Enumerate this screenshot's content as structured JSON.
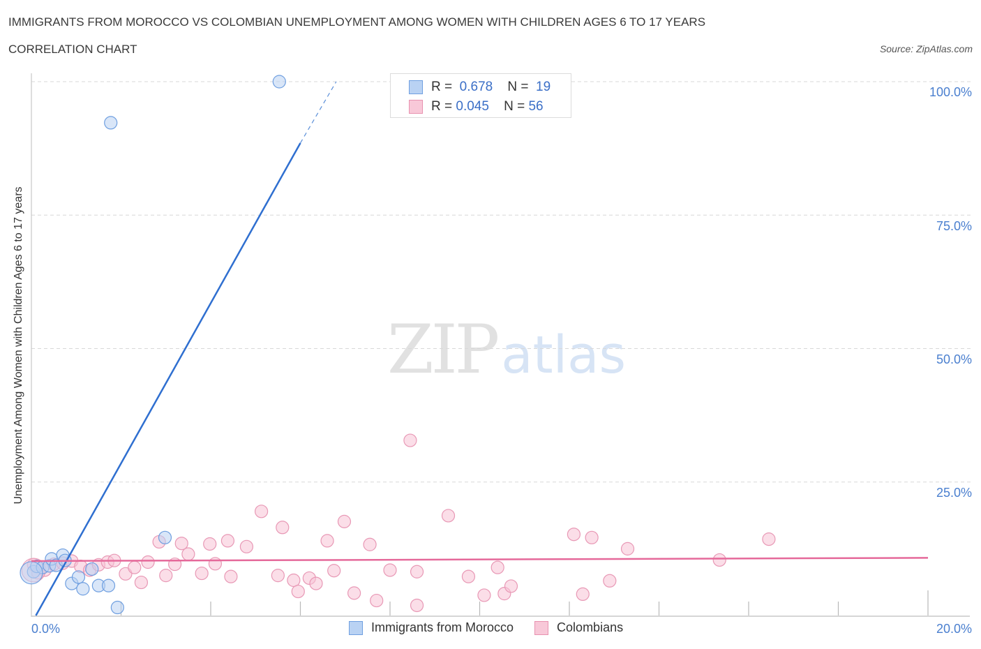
{
  "header": {
    "title": "IMMIGRANTS FROM MOROCCO VS COLOMBIAN UNEMPLOYMENT AMONG WOMEN WITH CHILDREN AGES 6 TO 17 YEARS",
    "subtitle": "CORRELATION CHART",
    "source": "Source: ZipAtlas.com"
  },
  "watermark": {
    "zip": "ZIP",
    "atlas": "atlas"
  },
  "legend_top": {
    "rows": [
      {
        "r_label": "R =",
        "r_value": "0.678",
        "n_label": "N =",
        "n_value": "19",
        "color": "#b9d2f3",
        "border": "#6f9fe0"
      },
      {
        "r_label": "R =",
        "r_value": "0.045",
        "n_label": "N =",
        "n_value": "56",
        "color": "#f8c8d8",
        "border": "#e892b0"
      }
    ]
  },
  "legend_bottom": {
    "items": [
      {
        "label": "Immigrants from Morocco",
        "color": "#b9d2f3",
        "border": "#6f9fe0"
      },
      {
        "label": "Colombians",
        "color": "#f8c8d8",
        "border": "#e892b0"
      }
    ]
  },
  "axes": {
    "ylabel": "Unemployment Among Women with Children Ages 6 to 17 years",
    "y_ticks": [
      "100.0%",
      "75.0%",
      "50.0%",
      "25.0%"
    ],
    "x_ticks": [
      "0.0%",
      "20.0%"
    ]
  },
  "chart_data": {
    "type": "scatter",
    "title": "Immigrants from Morocco vs Colombian Unemployment Among Women with Children Ages 6 to 17 years",
    "xlabel": "",
    "ylabel": "Unemployment Among Women with Children Ages 6 to 17 years",
    "xlim": [
      0,
      20
    ],
    "ylim": [
      0,
      100
    ],
    "x_unit": "%",
    "y_unit": "%",
    "grid": {
      "horizontal_dashed": [
        25,
        50,
        75,
        100
      ]
    },
    "legend_position": "bottom-center",
    "series": [
      {
        "name": "Immigrants from Morocco",
        "color": "#5b8fd9",
        "R": 0.678,
        "N": 19,
        "trendline": {
          "x0": 0.1,
          "y0": 0.0,
          "x1": 6.0,
          "y1": 88.5,
          "dashed_extension_to": [
            6.8,
            100
          ]
        },
        "points": [
          [
            0.05,
            8.2
          ],
          [
            0.12,
            9.2
          ],
          [
            0.25,
            9.0
          ],
          [
            0.4,
            9.3
          ],
          [
            0.45,
            10.6
          ],
          [
            0.55,
            9.4
          ],
          [
            0.7,
            11.3
          ],
          [
            0.75,
            10.3
          ],
          [
            0.9,
            6.0
          ],
          [
            1.05,
            7.2
          ],
          [
            1.15,
            5.0
          ],
          [
            1.35,
            8.7
          ],
          [
            1.5,
            5.6
          ],
          [
            1.72,
            5.6
          ],
          [
            1.92,
            1.5
          ],
          [
            2.98,
            14.6
          ],
          [
            5.53,
            100.0
          ],
          [
            1.77,
            92.3
          ],
          [
            0.0,
            8.0
          ]
        ]
      },
      {
        "name": "Colombians",
        "color": "#e8749b",
        "R": 0.045,
        "N": 56,
        "trendline": {
          "x0": 0.0,
          "y0": 10.2,
          "x1": 20.0,
          "y1": 10.8
        },
        "points": [
          [
            0.05,
            9.5
          ],
          [
            0.15,
            8.0
          ],
          [
            0.3,
            8.5
          ],
          [
            0.5,
            9.6
          ],
          [
            0.7,
            9.8
          ],
          [
            0.9,
            10.2
          ],
          [
            1.1,
            9.2
          ],
          [
            1.3,
            8.5
          ],
          [
            1.5,
            9.5
          ],
          [
            1.7,
            10.0
          ],
          [
            1.85,
            10.3
          ],
          [
            2.1,
            7.8
          ],
          [
            2.3,
            9.0
          ],
          [
            2.45,
            6.2
          ],
          [
            2.6,
            10.0
          ],
          [
            2.85,
            13.8
          ],
          [
            3.0,
            7.5
          ],
          [
            3.2,
            9.6
          ],
          [
            3.35,
            13.5
          ],
          [
            3.5,
            11.5
          ],
          [
            3.8,
            7.9
          ],
          [
            3.98,
            13.4
          ],
          [
            4.1,
            9.7
          ],
          [
            4.38,
            14.0
          ],
          [
            4.45,
            7.3
          ],
          [
            4.8,
            12.9
          ],
          [
            5.13,
            19.5
          ],
          [
            5.5,
            7.5
          ],
          [
            5.6,
            16.5
          ],
          [
            5.85,
            6.6
          ],
          [
            5.95,
            4.5
          ],
          [
            6.2,
            7.0
          ],
          [
            6.35,
            6.0
          ],
          [
            6.6,
            14.0
          ],
          [
            6.75,
            8.4
          ],
          [
            6.98,
            17.6
          ],
          [
            7.2,
            4.2
          ],
          [
            7.55,
            13.3
          ],
          [
            7.7,
            2.8
          ],
          [
            8.0,
            8.5
          ],
          [
            8.45,
            32.8
          ],
          [
            8.6,
            8.2
          ],
          [
            8.6,
            1.9
          ],
          [
            9.3,
            18.7
          ],
          [
            9.75,
            7.3
          ],
          [
            10.1,
            3.8
          ],
          [
            10.4,
            9.0
          ],
          [
            10.55,
            4.1
          ],
          [
            10.7,
            5.5
          ],
          [
            12.1,
            15.2
          ],
          [
            12.3,
            4.0
          ],
          [
            12.5,
            14.6
          ],
          [
            12.9,
            6.5
          ],
          [
            13.3,
            12.5
          ],
          [
            15.35,
            10.4
          ],
          [
            16.45,
            14.3
          ]
        ]
      }
    ]
  }
}
